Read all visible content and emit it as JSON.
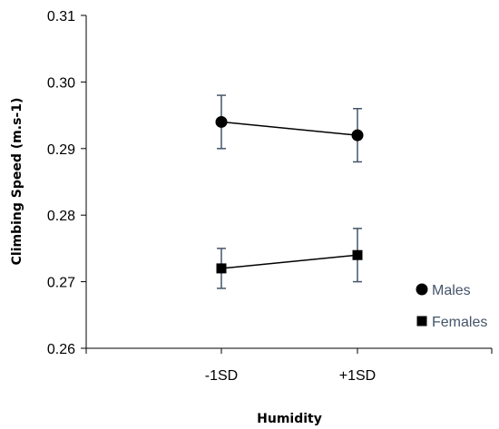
{
  "chart_data": {
    "type": "line",
    "xlabel": "Humidity",
    "ylabel": "Climbing Speed (m.s-1)",
    "categories": [
      "-1SD",
      "+1SD"
    ],
    "ylim": [
      0.26,
      0.31
    ],
    "yticks": [
      "0.26",
      "0.27",
      "0.28",
      "0.29",
      "0.30",
      "0.31"
    ],
    "grid": false,
    "legend_position": "bottom-right",
    "series": [
      {
        "name": "Males",
        "marker": "circle",
        "values": [
          0.294,
          0.292
        ],
        "error_low": [
          0.29,
          0.288
        ],
        "error_high": [
          0.298,
          0.296
        ]
      },
      {
        "name": "Females",
        "marker": "square",
        "values": [
          0.272,
          0.274
        ],
        "error_low": [
          0.269,
          0.27
        ],
        "error_high": [
          0.275,
          0.278
        ]
      }
    ],
    "colors": {
      "marker": "#000000",
      "line": "#000000",
      "error_bar": "#44546a",
      "legend_text": "#44546a",
      "axis": "#000000"
    }
  }
}
